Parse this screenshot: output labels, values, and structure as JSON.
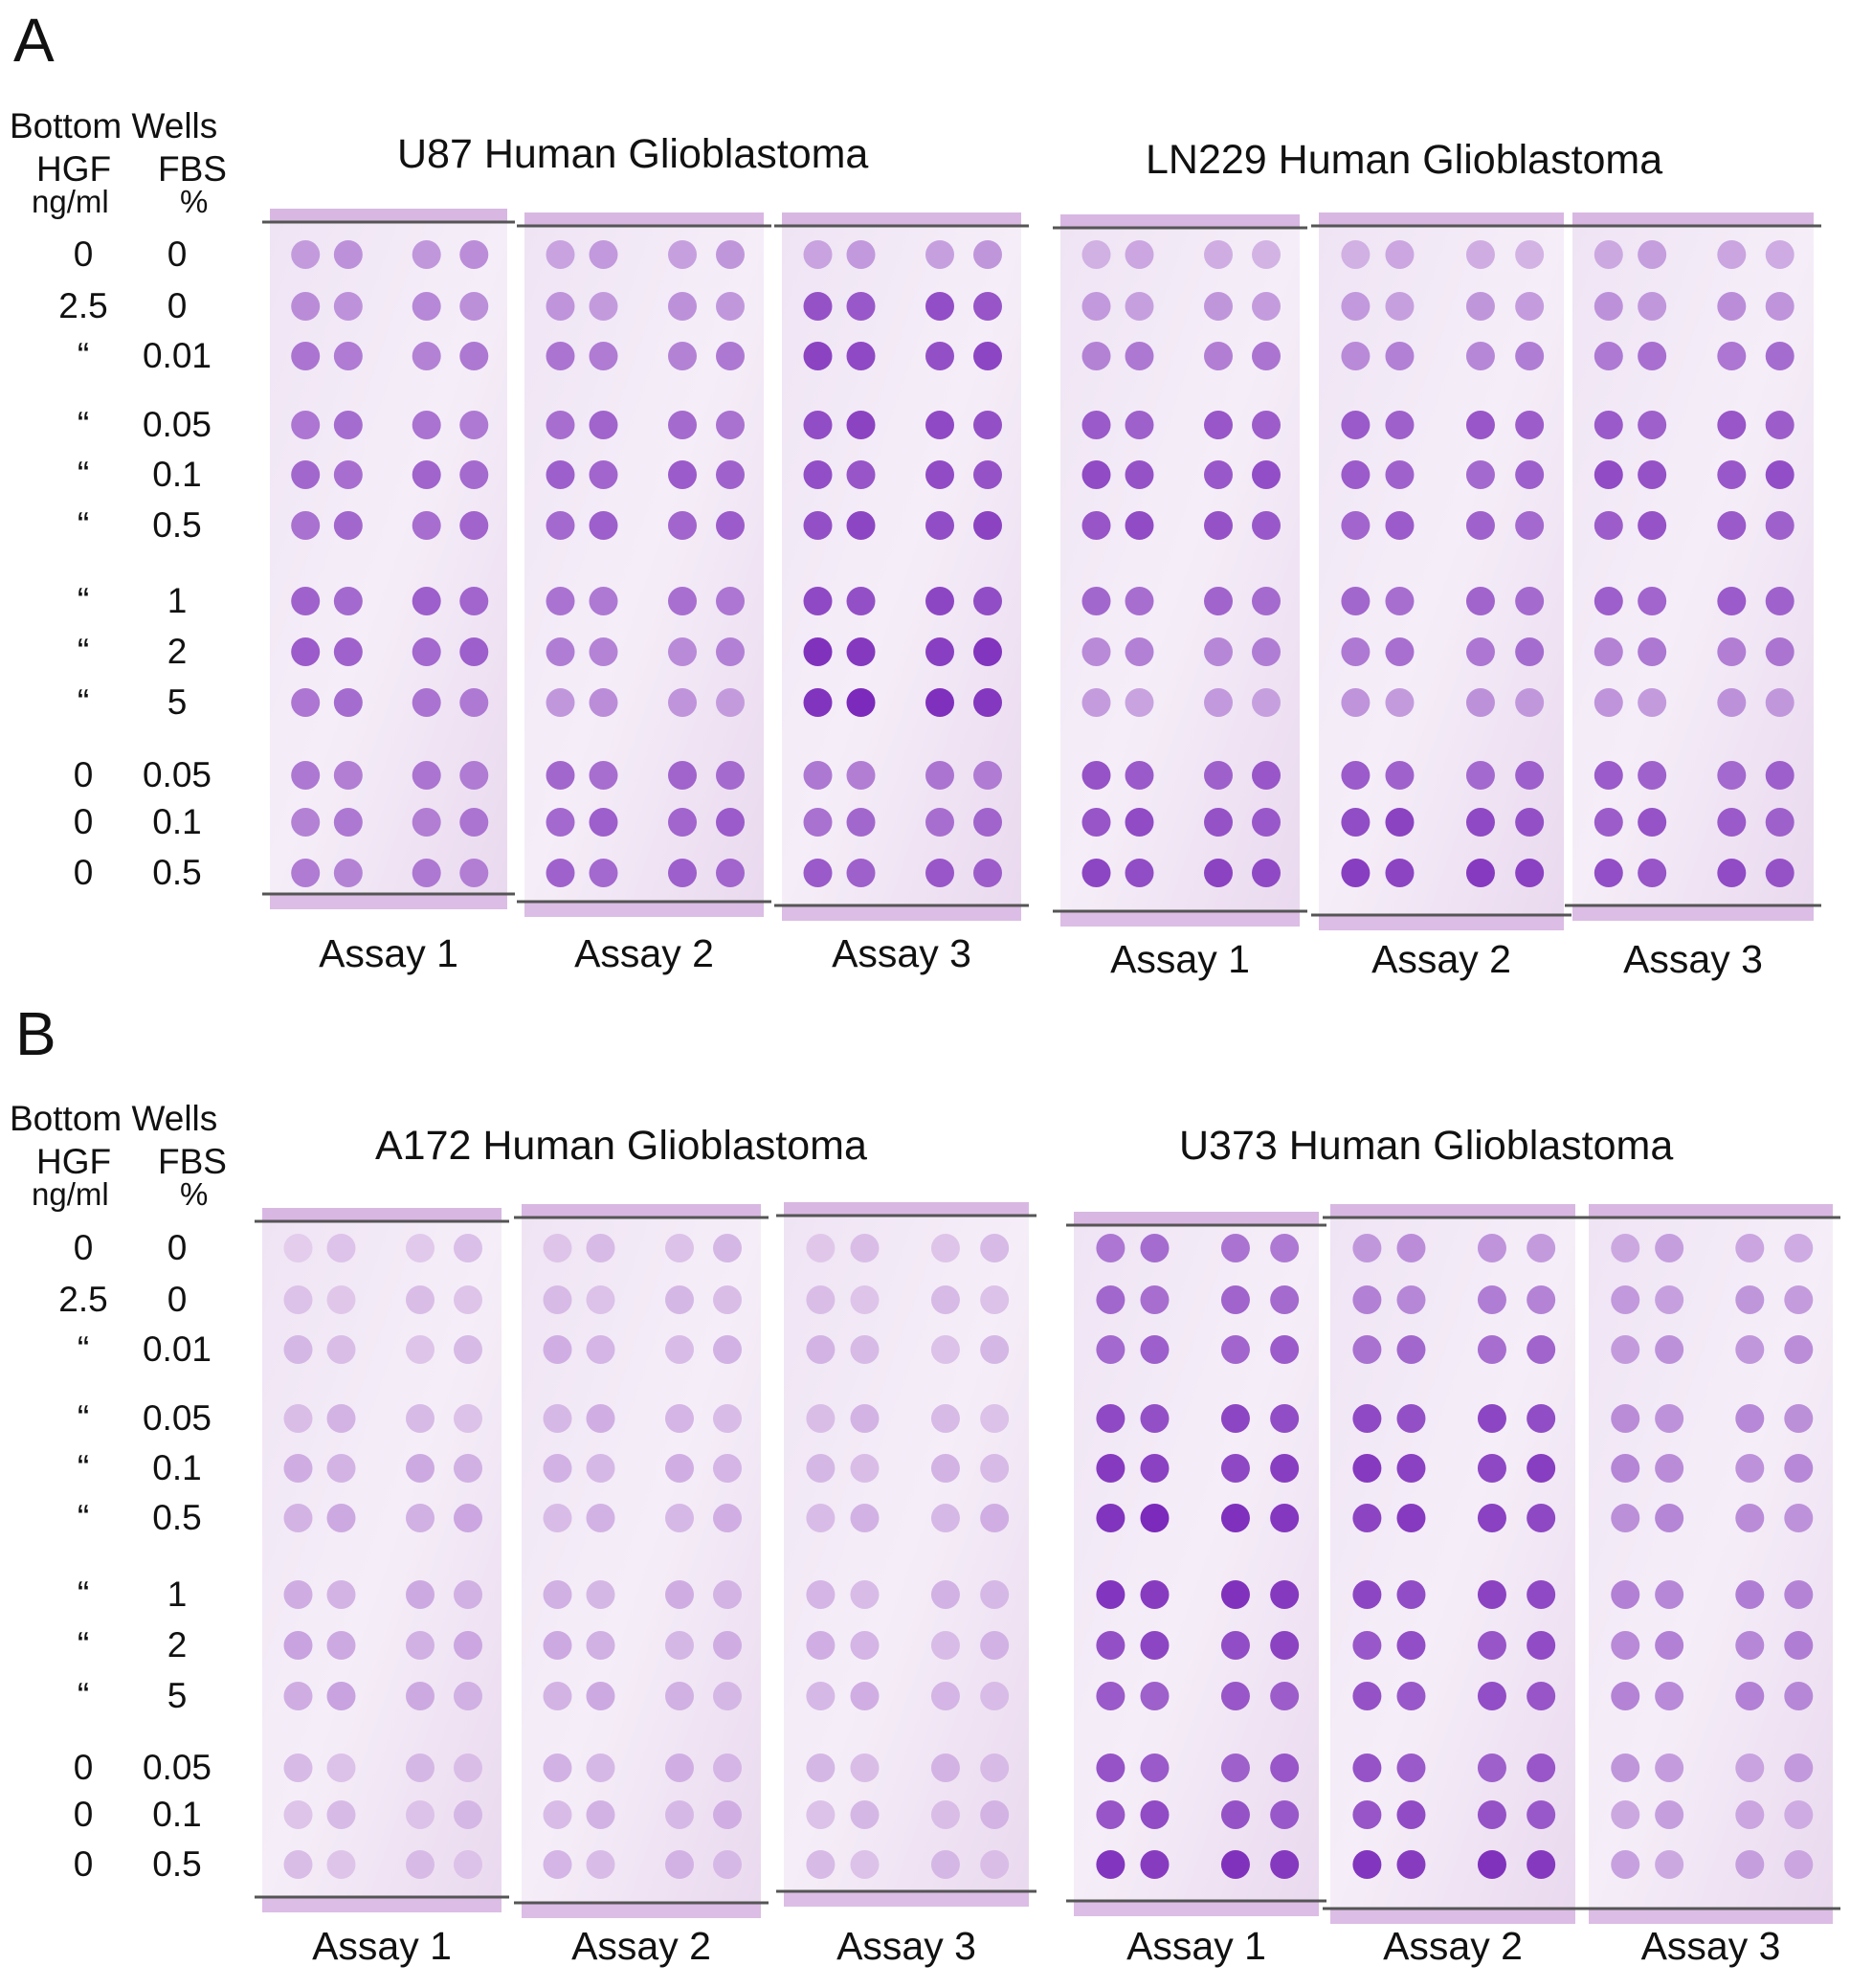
{
  "panels": [
    {
      "letter": "A",
      "legend": {
        "title": "Bottom Wells",
        "col1_header": "HGF",
        "col1_unit": "ng/ml",
        "col2_header": "FBS",
        "col2_unit": "%"
      },
      "rows": [
        {
          "hgf": "0",
          "fbs": "0"
        },
        {
          "hgf": "2.5",
          "fbs": "0"
        },
        {
          "hgf": "“",
          "fbs": "0.01"
        },
        {
          "hgf": "“",
          "fbs": "0.05"
        },
        {
          "hgf": "“",
          "fbs": "0.1"
        },
        {
          "hgf": "“",
          "fbs": "0.5"
        },
        {
          "hgf": "“",
          "fbs": "1"
        },
        {
          "hgf": "“",
          "fbs": "2"
        },
        {
          "hgf": "“",
          "fbs": "5"
        },
        {
          "hgf": "0",
          "fbs": "0.05"
        },
        {
          "hgf": "0",
          "fbs": "0.1"
        },
        {
          "hgf": "0",
          "fbs": "0.5"
        }
      ],
      "cell_lines": [
        {
          "name": "U87 Human Glioblastoma",
          "assays": [
            {
              "label": "Assay 1",
              "intensities": [
                0.35,
                0.4,
                0.5,
                0.55,
                0.6,
                0.6,
                0.65,
                0.65,
                0.55,
                0.5,
                0.5,
                0.5
              ]
            },
            {
              "label": "Assay 2",
              "intensities": [
                0.3,
                0.35,
                0.5,
                0.6,
                0.65,
                0.65,
                0.55,
                0.45,
                0.35,
                0.6,
                0.65,
                0.65
              ]
            },
            {
              "label": "Assay 3",
              "intensities": [
                0.3,
                0.75,
                0.8,
                0.8,
                0.75,
                0.8,
                0.8,
                0.9,
                0.95,
                0.5,
                0.6,
                0.7
              ]
            }
          ]
        },
        {
          "name": "LN229 Human Glioblastoma",
          "assays": [
            {
              "label": "Assay 1",
              "intensities": [
                0.2,
                0.3,
                0.5,
                0.7,
                0.75,
                0.75,
                0.6,
                0.45,
                0.3,
                0.7,
                0.75,
                0.8
              ]
            },
            {
              "label": "Assay 2",
              "intensities": [
                0.2,
                0.3,
                0.45,
                0.7,
                0.65,
                0.65,
                0.6,
                0.55,
                0.35,
                0.65,
                0.8,
                0.85
              ]
            },
            {
              "label": "Assay 3",
              "intensities": [
                0.25,
                0.35,
                0.55,
                0.7,
                0.75,
                0.7,
                0.65,
                0.5,
                0.35,
                0.65,
                0.7,
                0.75
              ]
            }
          ]
        }
      ]
    },
    {
      "letter": "B",
      "legend": {
        "title": "Bottom Wells",
        "col1_header": "HGF",
        "col1_unit": "ng/ml",
        "col2_header": "FBS",
        "col2_unit": "%"
      },
      "rows": [
        {
          "hgf": "0",
          "fbs": "0"
        },
        {
          "hgf": "2.5",
          "fbs": "0"
        },
        {
          "hgf": "“",
          "fbs": "0.01"
        },
        {
          "hgf": "“",
          "fbs": "0.05"
        },
        {
          "hgf": "“",
          "fbs": "0.1"
        },
        {
          "hgf": "“",
          "fbs": "0.5"
        },
        {
          "hgf": "“",
          "fbs": "1"
        },
        {
          "hgf": "“",
          "fbs": "2"
        },
        {
          "hgf": "“",
          "fbs": "5"
        },
        {
          "hgf": "0",
          "fbs": "0.05"
        },
        {
          "hgf": "0",
          "fbs": "0.1"
        },
        {
          "hgf": "0",
          "fbs": "0.5"
        }
      ],
      "cell_lines": [
        {
          "name": "A172 Human Glioblastoma",
          "assays": [
            {
              "label": "Assay 1",
              "intensities": [
                0.05,
                0.08,
                0.1,
                0.12,
                0.18,
                0.2,
                0.2,
                0.22,
                0.22,
                0.1,
                0.1,
                0.1
              ]
            },
            {
              "label": "Assay 2",
              "intensities": [
                0.1,
                0.12,
                0.15,
                0.15,
                0.15,
                0.15,
                0.18,
                0.18,
                0.18,
                0.15,
                0.15,
                0.15
              ]
            },
            {
              "label": "Assay 3",
              "intensities": [
                0.08,
                0.1,
                0.12,
                0.12,
                0.12,
                0.15,
                0.15,
                0.15,
                0.15,
                0.12,
                0.12,
                0.12
              ]
            }
          ]
        },
        {
          "name": "U373 Human Glioblastoma",
          "assays": [
            {
              "label": "Assay 1",
              "intensities": [
                0.55,
                0.6,
                0.65,
                0.8,
                0.85,
                0.95,
                0.9,
                0.8,
                0.7,
                0.7,
                0.75,
                0.9
              ]
            },
            {
              "label": "Assay 2",
              "intensities": [
                0.35,
                0.45,
                0.6,
                0.8,
                0.85,
                0.85,
                0.8,
                0.75,
                0.75,
                0.7,
                0.75,
                0.9
              ]
            },
            {
              "label": "Assay 3",
              "intensities": [
                0.25,
                0.3,
                0.35,
                0.4,
                0.4,
                0.4,
                0.45,
                0.45,
                0.45,
                0.3,
                0.25,
                0.25
              ]
            }
          ]
        }
      ]
    }
  ]
}
